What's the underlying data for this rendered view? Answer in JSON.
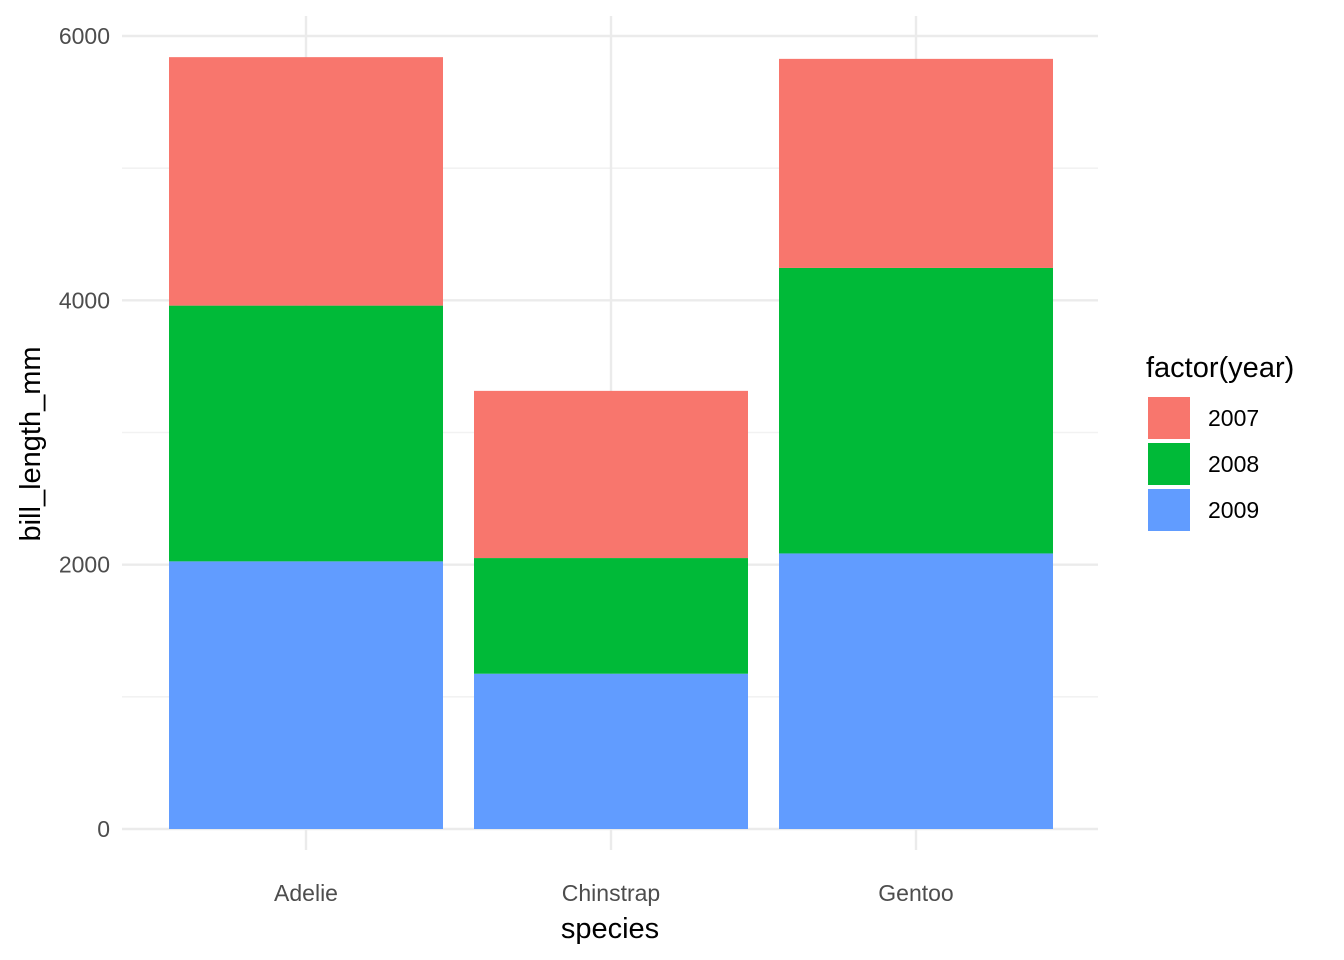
{
  "chart_data": {
    "type": "bar",
    "stacked": true,
    "categories": [
      "Adelie",
      "Chinstrap",
      "Gentoo"
    ],
    "series": [
      {
        "name": "2007",
        "color": "#F8766D",
        "values": [
          1880,
          1265,
          1582
        ]
      },
      {
        "name": "2008",
        "color": "#00BA38",
        "values": [
          1935,
          875,
          2160
        ]
      },
      {
        "name": "2009",
        "color": "#619CFF",
        "values": [
          2025,
          1175,
          2085
        ]
      }
    ],
    "stack_order_bottom_to_top": [
      "2009",
      "2008",
      "2007"
    ],
    "xlabel": "species",
    "ylabel": "bill_length_mm",
    "ylim": [
      0,
      6000
    ],
    "yticks": [
      0,
      2000,
      4000,
      6000
    ],
    "yticks_labels": [
      "0",
      "2000",
      "4000",
      "6000"
    ],
    "grid": true,
    "legend": {
      "title": "factor(year)",
      "placement": "right"
    }
  }
}
